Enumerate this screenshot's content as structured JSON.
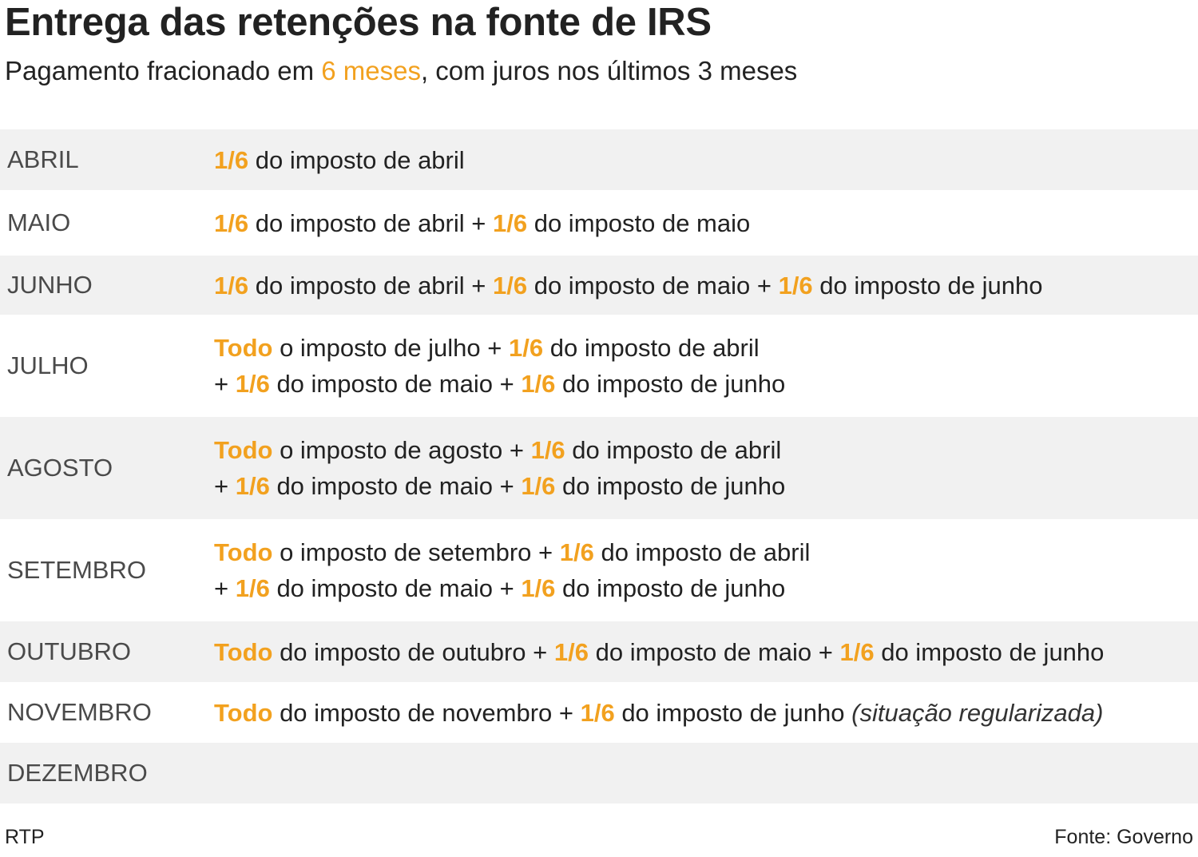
{
  "title": "Entrega das retenções na fonte de IRS",
  "subtitle": {
    "part1": "Pagamento fracionado em ",
    "highlight": "6 meses",
    "part2": ", com juros nos últimos 3 meses"
  },
  "colors": {
    "accent": "#f2a11f",
    "row_shade": "#f1f1f1",
    "text": "#222222",
    "month_text": "#4a4a4a"
  },
  "rows": [
    {
      "month": "ABRIL",
      "lines": [
        [
          {
            "t": "1/6",
            "h": true
          },
          {
            "t": " do imposto de abril"
          }
        ]
      ]
    },
    {
      "month": "MAIO",
      "lines": [
        [
          {
            "t": "1/6",
            "h": true
          },
          {
            "t": " do imposto de abril + "
          },
          {
            "t": "1/6",
            "h": true
          },
          {
            "t": " do imposto de maio"
          }
        ]
      ]
    },
    {
      "month": "JUNHO",
      "lines": [
        [
          {
            "t": "1/6",
            "h": true
          },
          {
            "t": " do imposto de abril + "
          },
          {
            "t": "1/6",
            "h": true
          },
          {
            "t": " do imposto de maio + "
          },
          {
            "t": "1/6",
            "h": true
          },
          {
            "t": " do imposto de junho"
          }
        ]
      ]
    },
    {
      "month": "JULHO",
      "lines": [
        [
          {
            "t": "Todo",
            "h": true
          },
          {
            "t": " o imposto de julho + "
          },
          {
            "t": "1/6",
            "h": true
          },
          {
            "t": " do imposto de abril"
          }
        ],
        [
          {
            "t": "+ "
          },
          {
            "t": "1/6",
            "h": true
          },
          {
            "t": " do imposto de maio + "
          },
          {
            "t": "1/6",
            "h": true
          },
          {
            "t": " do imposto de junho"
          }
        ]
      ]
    },
    {
      "month": "AGOSTO",
      "lines": [
        [
          {
            "t": "Todo",
            "h": true
          },
          {
            "t": " o imposto de agosto + "
          },
          {
            "t": "1/6",
            "h": true
          },
          {
            "t": " do imposto de abril"
          }
        ],
        [
          {
            "t": "+ "
          },
          {
            "t": "1/6",
            "h": true
          },
          {
            "t": " do imposto de maio + "
          },
          {
            "t": "1/6",
            "h": true
          },
          {
            "t": " do imposto de junho"
          }
        ]
      ]
    },
    {
      "month": "SETEMBRO",
      "lines": [
        [
          {
            "t": "Todo",
            "h": true
          },
          {
            "t": " o imposto de setembro + "
          },
          {
            "t": "1/6",
            "h": true
          },
          {
            "t": " do imposto de abril"
          }
        ],
        [
          {
            "t": "+ "
          },
          {
            "t": "1/6",
            "h": true
          },
          {
            "t": " do imposto de maio + "
          },
          {
            "t": "1/6",
            "h": true
          },
          {
            "t": " do imposto de junho"
          }
        ]
      ]
    },
    {
      "month": "OUTUBRO",
      "lines": [
        [
          {
            "t": "Todo",
            "h": true
          },
          {
            "t": " do imposto de outubro + "
          },
          {
            "t": "1/6",
            "h": true
          },
          {
            "t": " do imposto de maio + "
          },
          {
            "t": "1/6",
            "h": true
          },
          {
            "t": " do imposto de junho"
          }
        ]
      ]
    },
    {
      "month": "NOVEMBRO",
      "lines": [
        [
          {
            "t": "Todo",
            "h": true
          },
          {
            "t": " do imposto de novembro + "
          },
          {
            "t": "1/6",
            "h": true
          },
          {
            "t": " do imposto de junho "
          },
          {
            "t": "(situação regularizada)",
            "i": true
          }
        ]
      ]
    },
    {
      "month": "DEZEMBRO",
      "lines": []
    }
  ],
  "footer": {
    "left": "RTP",
    "right": "Fonte: Governo"
  }
}
